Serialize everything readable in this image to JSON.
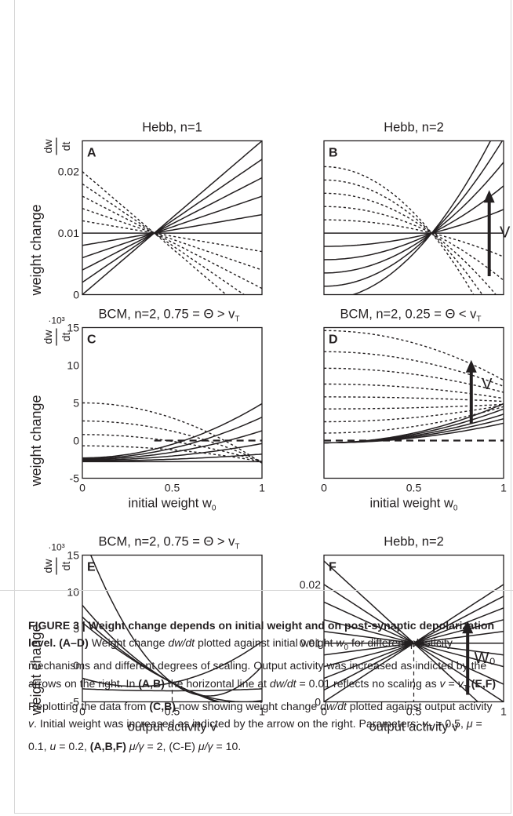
{
  "figure": {
    "y_axis_label": "weight change",
    "y_axis_frac_num": "dw",
    "y_axis_frac_den": "dt",
    "scale_label": "·10³",
    "arrow_V": "V",
    "arrow_W0": "W₀"
  },
  "chart_data": [
    {
      "panel": "A",
      "type": "line",
      "title": "Hebb, n=1",
      "xlabel": "",
      "xlim": [
        0,
        1
      ],
      "ylim": [
        0,
        0.025
      ],
      "yticks": [
        "0",
        "0.01",
        "0.02"
      ],
      "xticks": [],
      "curves": "solid lines cross at w0=0.4, y=0.01 with increasing slope; dotted lines cross with decreasing slope"
    },
    {
      "panel": "B",
      "type": "line",
      "title": "Hebb, n=2",
      "xlabel": "",
      "xlim": [
        0,
        1
      ],
      "ylim": [
        0,
        0.025
      ],
      "yticks": [],
      "xticks": [],
      "annotation": "V"
    },
    {
      "panel": "C",
      "type": "line",
      "title": "BCM, n=2, 0.75 = Θ > v",
      "title_sub": "T",
      "xlabel": "initial weight w",
      "xlabel_sub": "0",
      "xlim": [
        0,
        1
      ],
      "ylim": [
        -5,
        15
      ],
      "yticks": [
        "-5",
        "0",
        "5",
        "10",
        "15"
      ],
      "xticks": [
        "0",
        "0.5",
        "1"
      ],
      "reference_line": 0
    },
    {
      "panel": "D",
      "type": "line",
      "title": "BCM, n=2, 0.25 = Θ < v",
      "title_sub": "T",
      "xlabel": "initial weight w",
      "xlabel_sub": "0",
      "xlim": [
        0,
        1
      ],
      "ylim": [
        -5,
        15
      ],
      "yticks": [],
      "xticks": [
        "0",
        "0.5",
        "1"
      ],
      "reference_line": 0,
      "annotation": "V"
    },
    {
      "panel": "E",
      "type": "line",
      "title": "BCM, n=2, 0.75 = Θ > v",
      "title_sub": "T",
      "xlabel": "output activity v",
      "xlim": [
        0,
        1
      ],
      "ylim": [
        -5,
        15
      ],
      "yticks": [
        "-5",
        "0",
        "5",
        "10",
        "15"
      ],
      "xticks": [
        "0",
        "0.5",
        "1"
      ],
      "vertical_reference": 0.5
    },
    {
      "panel": "F",
      "type": "line",
      "title": "Hebb, n=2",
      "xlabel": "output activity v",
      "xlim": [
        0,
        1
      ],
      "ylim": [
        0,
        0.025
      ],
      "yticks": [
        "0",
        "0.01",
        "0.02"
      ],
      "xticks": [
        "0",
        "0.5",
        "1"
      ],
      "vertical_reference": 0.5,
      "annotation": "W0"
    }
  ],
  "caption": {
    "lead": "FIGURE 3 | Weight change depends on initial weight and on post-synaptic depolarization level.",
    "s1_label": "(A–D)",
    "s1_a": "Weight change",
    "s1_math1": "dw/dt",
    "s1_b": "plotted against initial weight",
    "s1_math2": "w",
    "s1_math2_sub": "0",
    "s1_c": "for different plasticity mechanisms and different degrees of scaling. Output activity was increased as indicted by the arrows on the right. In",
    "s1_label2": "(A,B)",
    "s1_d": "the horizontal line at",
    "s1_math3": "dw/dt",
    "s1_e": "= 0.01 reflects no scaling as",
    "s1_math4": "v",
    "s1_f": "=",
    "s1_math5": "v",
    "s1_math5_sub": "T",
    "s1_g": ".",
    "s2_label": "(E,F)",
    "s2_a": "Replotting the data from",
    "s2_label2": "(C,B)",
    "s2_b": "now showing weight change",
    "s2_math1": "dw/dt",
    "s2_c": "plotted against output activity",
    "s2_math2": "v",
    "s2_d": ". Initial weight was increased as indicted by the arrow on the right. Parameters:",
    "p1_math": "v",
    "p1_sub": "T",
    "p1_val": "= 0.5,",
    "p2_math": "μ",
    "p2_val": "= 0.1,",
    "p3_math": "u",
    "p3_val": "= 0.2,",
    "p4_label": "(A,B,F)",
    "p4_math": "μ/γ",
    "p4_val": "= 2, (C-E)",
    "p5_math": "μ/γ",
    "p5_val": "= 10."
  }
}
